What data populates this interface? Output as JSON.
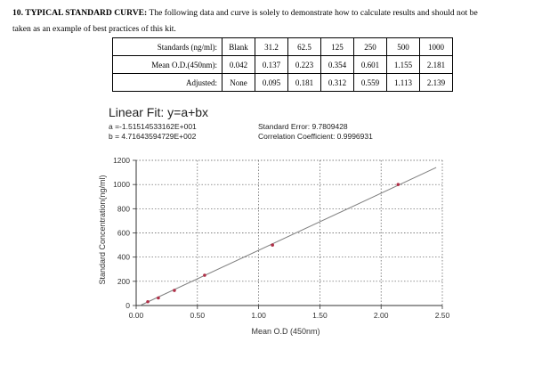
{
  "section": {
    "heading": "10. TYPICAL STANDARD CURVE:",
    "text_line1": "The following data and curve is solely to demonstrate how to calculate results and should not be",
    "text_line2": "taken as an example of best practices of this kit."
  },
  "table": {
    "rows": [
      {
        "header": "Standards (ng/ml):",
        "cells": [
          "Blank",
          "31.2",
          "62.5",
          "125",
          "250",
          "500",
          "1000"
        ]
      },
      {
        "header": "Mean O.D.(450nm):",
        "cells": [
          "0.042",
          "0.137",
          "0.223",
          "0.354",
          "0.601",
          "1.155",
          "2.181"
        ]
      },
      {
        "header": "Adjusted:",
        "cells": [
          "None",
          "0.095",
          "0.181",
          "0.312",
          "0.559",
          "1.113",
          "2.139"
        ]
      }
    ]
  },
  "fit": {
    "title": "Linear Fit: y=a+bx",
    "a": "a =-1.51514533162E+001",
    "b": "b = 4.71643594729E+002",
    "standard_error": "Standard Error: 9.7809428",
    "correlation": "Correlation Coefficient: 0.9996931"
  },
  "colors": {
    "line": "#7f7f7f",
    "point": "#b03048",
    "grid": "#555555"
  },
  "chart_data": {
    "type": "scatter",
    "xlabel": "Mean O.D (450nm)",
    "ylabel": "Standard Concentration(ng/ml)",
    "xlim": [
      0,
      2.5
    ],
    "ylim": [
      0,
      1200
    ],
    "x_ticks": [
      0,
      0.5,
      1.0,
      1.5,
      2.0,
      2.5
    ],
    "x_tick_labels": [
      "0.00",
      "0.50",
      "1.00",
      "1.50",
      "2.00",
      "2.50"
    ],
    "y_ticks": [
      0,
      200,
      400,
      600,
      800,
      1000,
      1200
    ],
    "y_tick_labels": [
      "0",
      "200",
      "400",
      "600",
      "800",
      "1000",
      "1200"
    ],
    "grid": true,
    "points": [
      {
        "x": 0.095,
        "y": 31.2
      },
      {
        "x": 0.181,
        "y": 62.5
      },
      {
        "x": 0.312,
        "y": 125
      },
      {
        "x": 0.559,
        "y": 250
      },
      {
        "x": 1.113,
        "y": 500
      },
      {
        "x": 2.139,
        "y": 1000
      }
    ],
    "fit_line": {
      "intercept": -15.1514533162,
      "slope": 471.643594729,
      "x_range": [
        0,
        2.45
      ]
    }
  }
}
